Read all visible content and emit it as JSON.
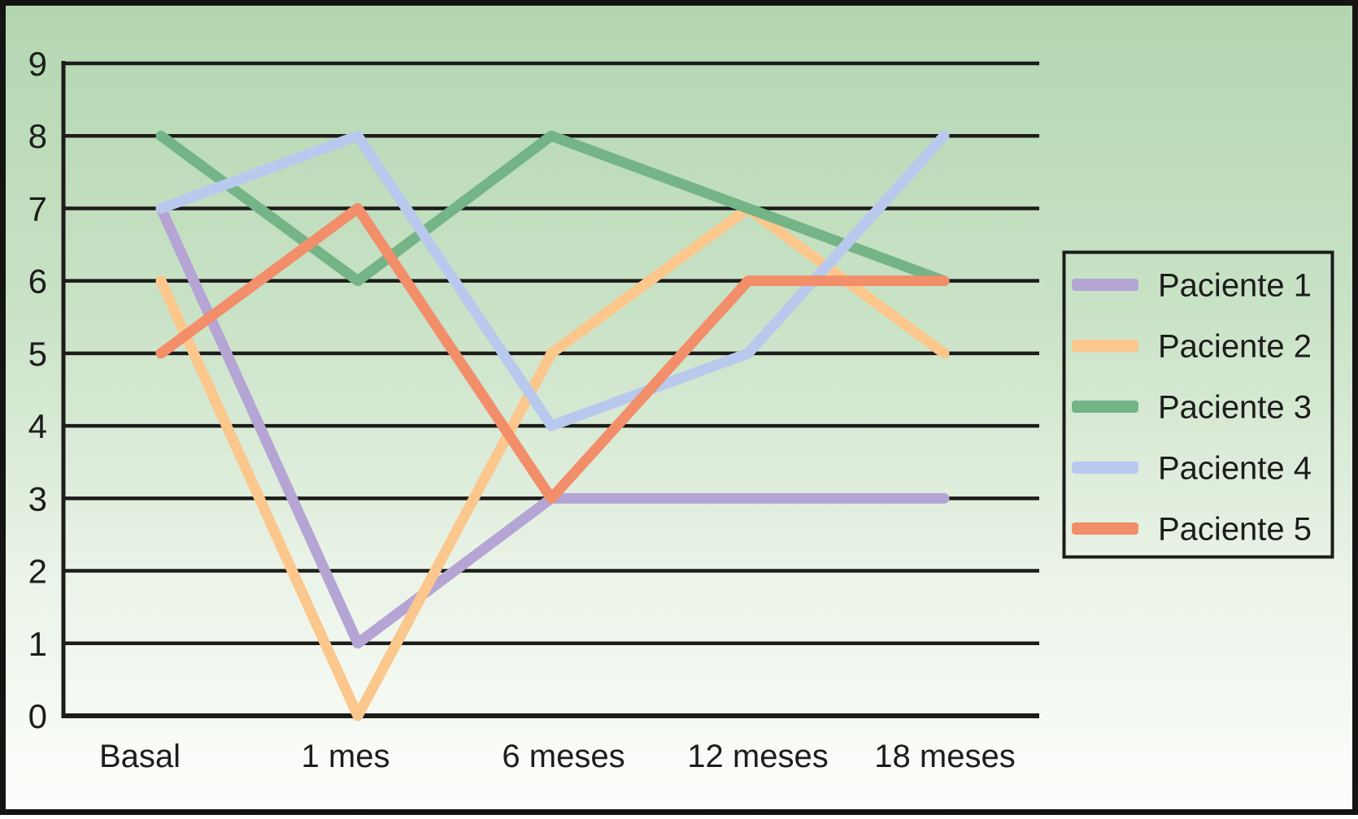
{
  "chart_data": {
    "type": "line",
    "categories": [
      "Basal",
      "1 mes",
      "6 meses",
      "12 meses",
      "18 meses"
    ],
    "y_ticks": [
      "9",
      "8",
      "7",
      "6",
      "5",
      "4",
      "3",
      "2",
      "1",
      "0"
    ],
    "ylim": [
      0,
      9
    ],
    "grid": "horizontal",
    "legend_position": "right",
    "series": [
      {
        "name": "Paciente 1",
        "color": "#b4a5d5",
        "values": [
          7,
          1,
          3,
          3,
          3
        ]
      },
      {
        "name": "Paciente 2",
        "color": "#fbc78c",
        "values": [
          6,
          0,
          5,
          7,
          5
        ]
      },
      {
        "name": "Paciente 3",
        "color": "#74b487",
        "values": [
          8,
          6,
          8,
          7,
          6
        ]
      },
      {
        "name": "Paciente 4",
        "color": "#b9c9ee",
        "values": [
          7,
          8,
          4,
          5,
          8
        ]
      },
      {
        "name": "Paciente 5",
        "color": "#f28e6a",
        "values": [
          5,
          7,
          3,
          6,
          6
        ]
      }
    ],
    "colors": {
      "text": "#1d1d1b",
      "grid": "#1c1c19",
      "frame": "#141412",
      "background_stops": [
        "#b2d6b0",
        "#c9e2c6",
        "#eaf3e7",
        "#fdfefc"
      ]
    }
  }
}
